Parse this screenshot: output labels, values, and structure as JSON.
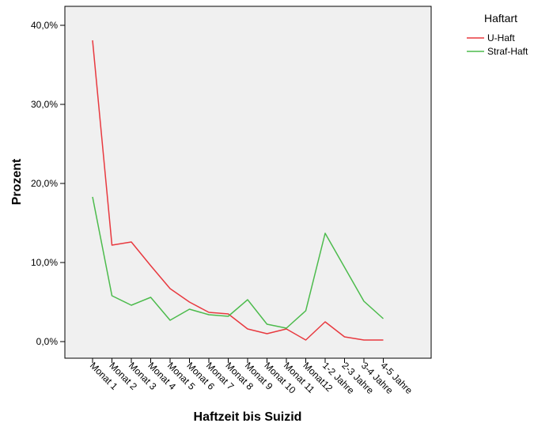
{
  "chart_data": {
    "type": "line",
    "xlabel": "Haftzeit bis Suizid",
    "ylabel": "Prozent",
    "categories": [
      "Monat 1",
      "Monat 2",
      "Monat 3",
      "Monat 4",
      "Monat 5",
      "Monat 6",
      "Monat 7",
      "Monat 8",
      "Monat 9",
      "Monat 10",
      "Monat 11",
      "Monat12",
      "1-2 Jahre",
      "2-3 Jahre",
      "3-4 Jahre",
      "4-5 Jahre"
    ],
    "ylim": [
      0,
      40
    ],
    "yticks": [
      0,
      10,
      20,
      30,
      40
    ],
    "ytick_labels": [
      "0,0%",
      "10,0%",
      "20,0%",
      "30,0%",
      "40,0%"
    ],
    "grid": false,
    "legend": {
      "title": "Haftart",
      "position": "top-right"
    },
    "series": [
      {
        "name": "U-Haft",
        "color": "#e8393f",
        "values": [
          38.1,
          12.2,
          12.6,
          9.6,
          6.7,
          5.0,
          3.7,
          3.5,
          1.6,
          1.0,
          1.6,
          0.2,
          2.5,
          0.6,
          0.2,
          0.2
        ]
      },
      {
        "name": "Straf-Haft",
        "color": "#4cbb4c",
        "values": [
          18.3,
          5.8,
          4.6,
          5.6,
          2.7,
          4.1,
          3.4,
          3.2,
          5.3,
          2.2,
          1.7,
          3.9,
          13.7,
          9.4,
          5.1,
          2.9
        ]
      }
    ],
    "series_last_point_note": ""
  }
}
